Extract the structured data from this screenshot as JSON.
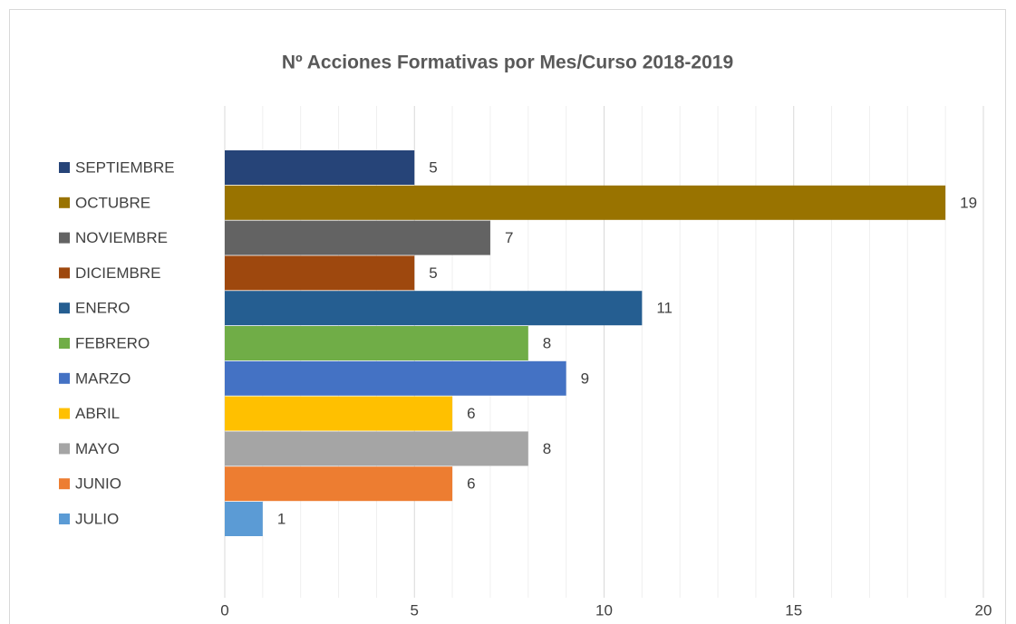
{
  "chart_data": {
    "type": "hbar",
    "title": "Nº Acciones Formativas por Mes/Curso 2018-2019",
    "categories": [
      "SEPTIEMBRE",
      "OCTUBRE",
      "NOVIEMBRE",
      "DICIEMBRE",
      "ENERO",
      "FEBRERO",
      "MARZO",
      "ABRIL",
      "MAYO",
      "JUNIO",
      "JULIO"
    ],
    "values": [
      5,
      19,
      7,
      5,
      11,
      8,
      9,
      6,
      8,
      6,
      1
    ],
    "colors": [
      "#264478",
      "#997300",
      "#636363",
      "#9e480e",
      "#255e91",
      "#70ad47",
      "#4472c4",
      "#ffc000",
      "#a5a5a5",
      "#ed7d31",
      "#5b9bd5"
    ],
    "xlim": [
      0,
      20
    ],
    "xticks": [
      0,
      5,
      10,
      15,
      20
    ],
    "x_minor_ticks": [
      1,
      2,
      3,
      4,
      6,
      7,
      8,
      9,
      11,
      12,
      13,
      14,
      16,
      17,
      18,
      19
    ],
    "grid": true,
    "legend": "left"
  }
}
